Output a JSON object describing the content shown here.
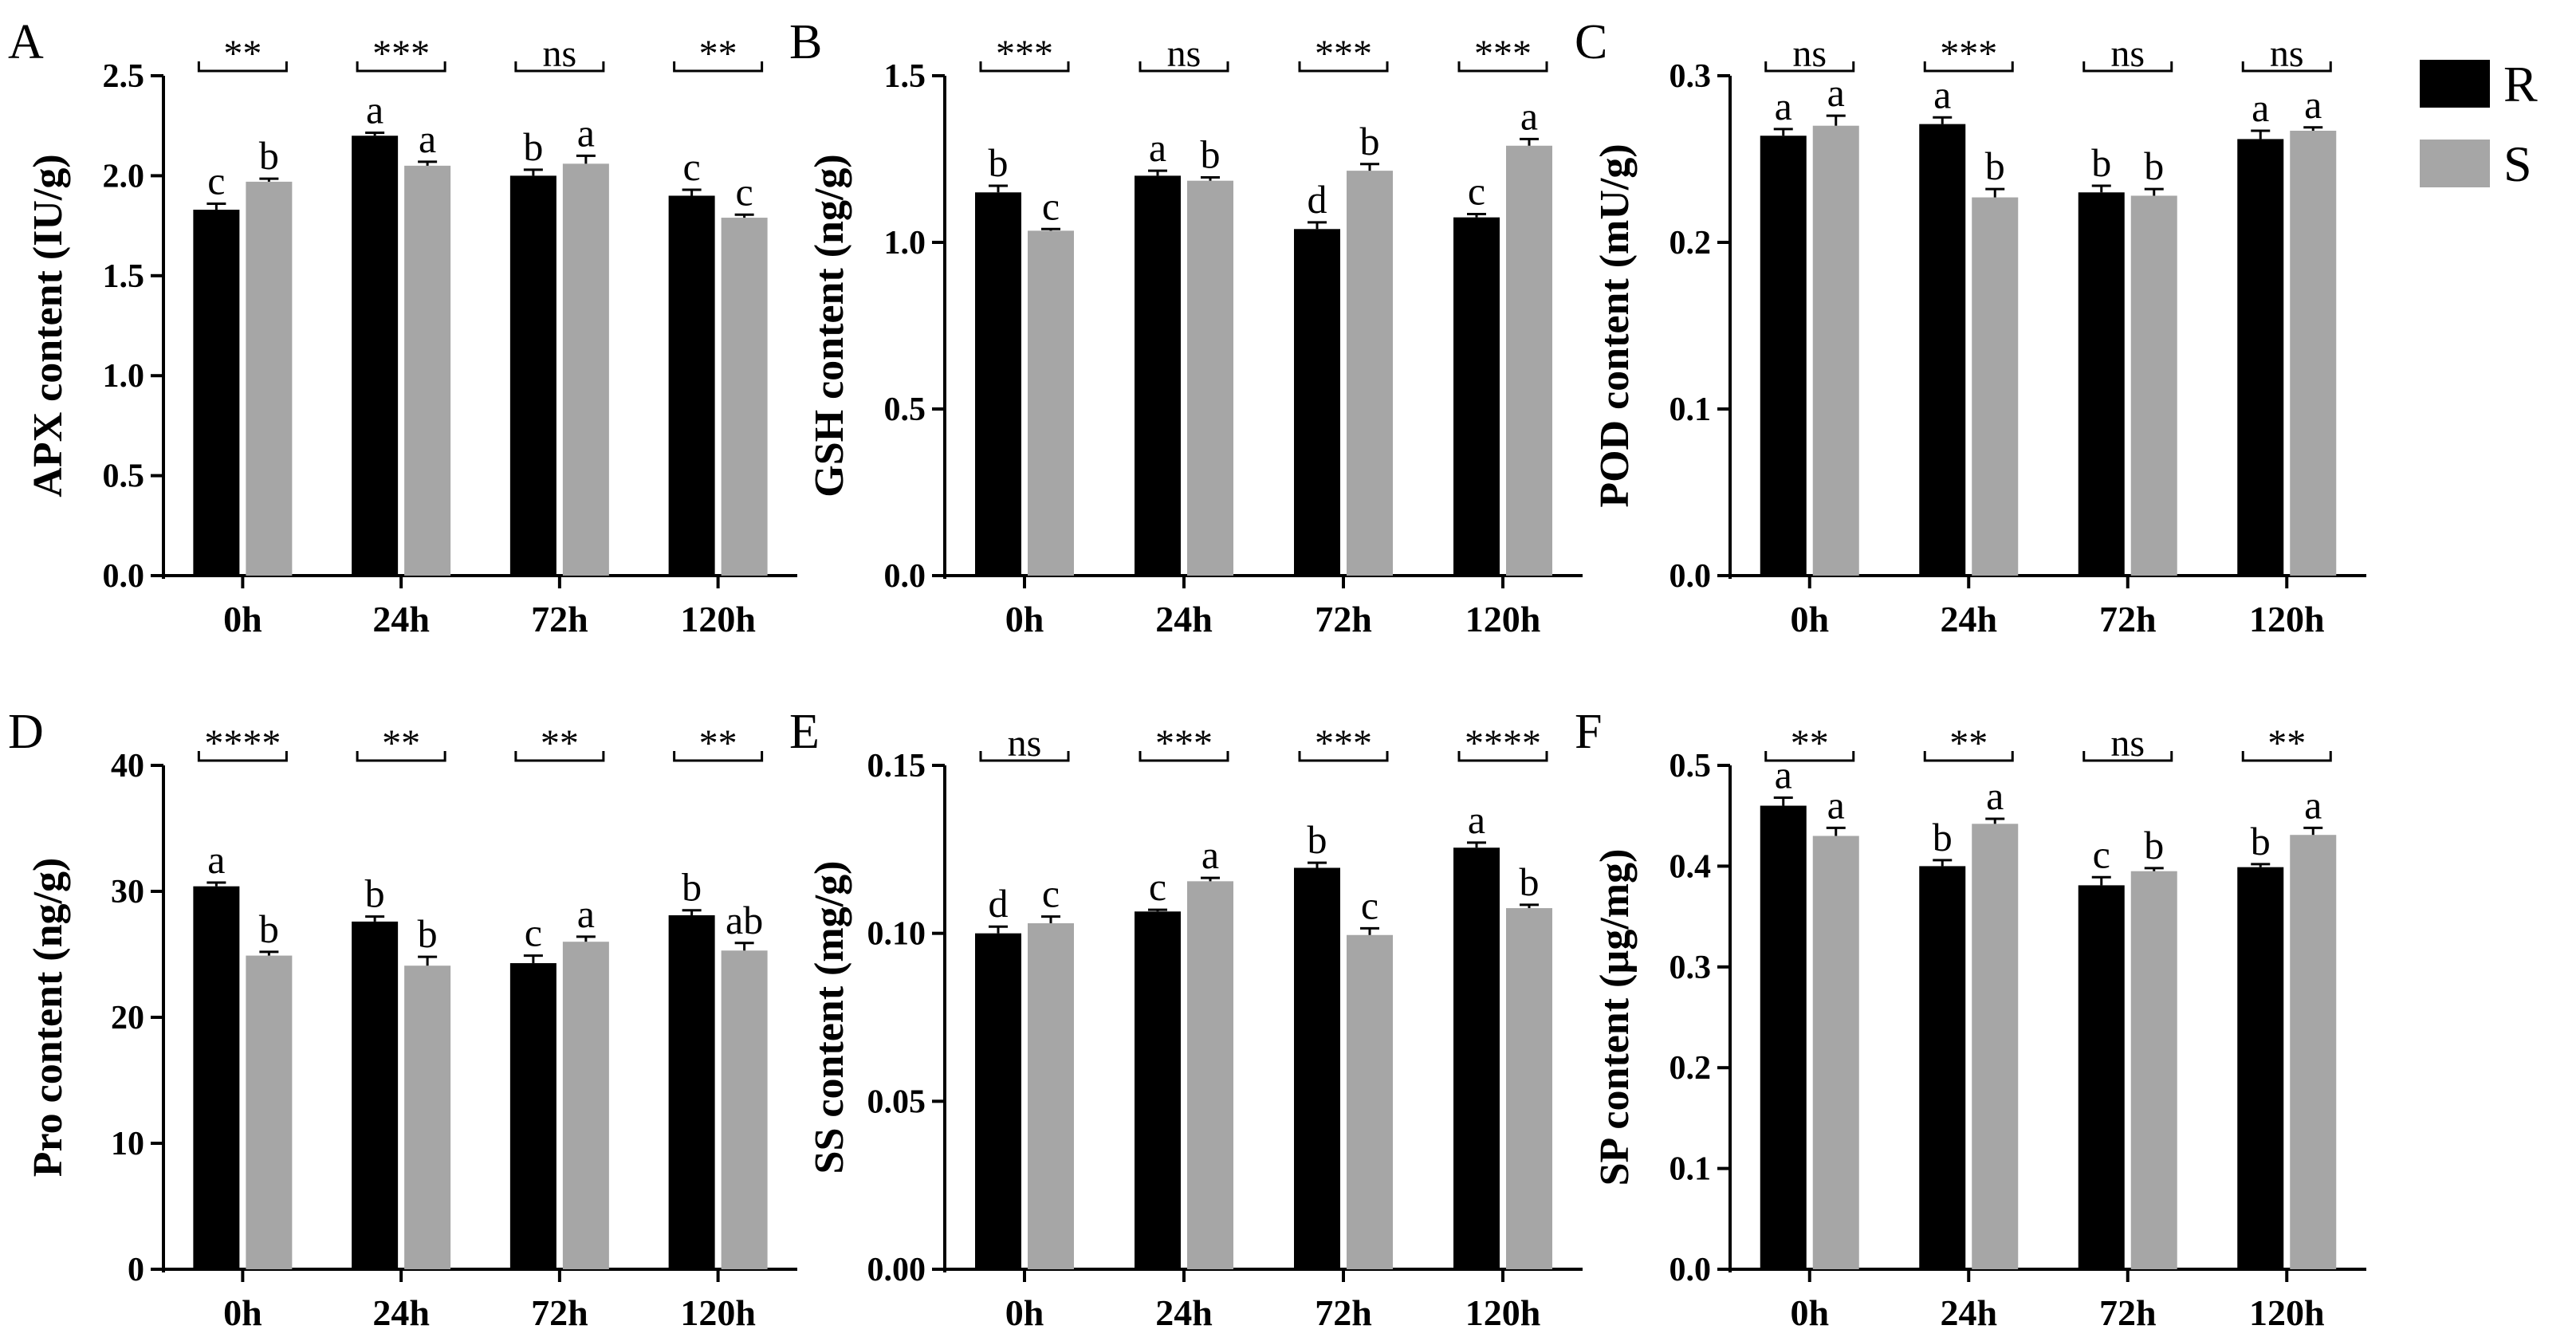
{
  "legend": {
    "items": [
      {
        "label": "R",
        "color": "#000000"
      },
      {
        "label": "S",
        "color": "#a6a6a6"
      }
    ]
  },
  "chart_data": [
    {
      "panel": "A",
      "type": "bar",
      "ylabel": "APX content (IU/g)",
      "ylim": [
        0,
        2.5
      ],
      "yticks": [
        "0.0",
        "0.5",
        "1.0",
        "1.5",
        "2.0",
        "2.5"
      ],
      "categories": [
        "0h",
        "24h",
        "72h",
        "120h"
      ],
      "series": [
        {
          "name": "R",
          "values": [
            1.83,
            2.2,
            2.0,
            1.9
          ],
          "errors": [
            0.03,
            0.015,
            0.03,
            0.03
          ],
          "letters": [
            "c",
            "a",
            "b",
            "c"
          ]
        },
        {
          "name": "S",
          "values": [
            1.97,
            2.05,
            2.06,
            1.79
          ],
          "errors": [
            0.015,
            0.02,
            0.04,
            0.015
          ],
          "letters": [
            "b",
            "a",
            "a",
            "c"
          ]
        }
      ],
      "significance": [
        "**",
        "***",
        "ns",
        "**"
      ]
    },
    {
      "panel": "B",
      "type": "bar",
      "ylabel": "GSH content (ng/g)",
      "ylim": [
        0,
        1.5
      ],
      "yticks": [
        "0.0",
        "0.5",
        "1.0",
        "1.5"
      ],
      "categories": [
        "0h",
        "24h",
        "72h",
        "120h"
      ],
      "series": [
        {
          "name": "R",
          "values": [
            1.15,
            1.2,
            1.04,
            1.075
          ],
          "errors": [
            0.02,
            0.015,
            0.02,
            0.01
          ],
          "letters": [
            "b",
            "a",
            "d",
            "c"
          ]
        },
        {
          "name": "S",
          "values": [
            1.035,
            1.185,
            1.215,
            1.29
          ],
          "errors": [
            0.005,
            0.01,
            0.02,
            0.02
          ],
          "letters": [
            "c",
            "b",
            "b",
            "a"
          ]
        }
      ],
      "significance": [
        "***",
        "ns",
        "***",
        "***"
      ]
    },
    {
      "panel": "C",
      "type": "bar",
      "ylabel": "POD content (mU/g)",
      "ylim": [
        0,
        0.3
      ],
      "yticks": [
        "0.0",
        "0.1",
        "0.2",
        "0.3"
      ],
      "categories": [
        "0h",
        "24h",
        "72h",
        "120h"
      ],
      "series": [
        {
          "name": "R",
          "values": [
            0.264,
            0.271,
            0.23,
            0.262
          ],
          "errors": [
            0.004,
            0.004,
            0.004,
            0.005
          ],
          "letters": [
            "a",
            "a",
            "b",
            "a"
          ]
        },
        {
          "name": "S",
          "values": [
            0.27,
            0.227,
            0.228,
            0.267
          ],
          "errors": [
            0.006,
            0.005,
            0.004,
            0.002
          ],
          "letters": [
            "a",
            "b",
            "b",
            "a"
          ]
        }
      ],
      "significance": [
        "ns",
        "***",
        "ns",
        "ns"
      ]
    },
    {
      "panel": "D",
      "type": "bar",
      "ylabel": "Pro content (ng/g)",
      "ylim": [
        0,
        40
      ],
      "yticks": [
        "0",
        "10",
        "20",
        "30",
        "40"
      ],
      "categories": [
        "0h",
        "24h",
        "72h",
        "120h"
      ],
      "series": [
        {
          "name": "R",
          "values": [
            30.4,
            27.6,
            24.3,
            28.1
          ],
          "errors": [
            0.3,
            0.4,
            0.6,
            0.4
          ],
          "letters": [
            "a",
            "b",
            "c",
            "b"
          ]
        },
        {
          "name": "S",
          "values": [
            24.9,
            24.1,
            26.0,
            25.3
          ],
          "errors": [
            0.3,
            0.7,
            0.4,
            0.6
          ],
          "letters": [
            "b",
            "b",
            "a",
            "ab"
          ]
        }
      ],
      "significance": [
        "****",
        "**",
        "**",
        "**"
      ]
    },
    {
      "panel": "E",
      "type": "bar",
      "ylabel": "SS content (mg/g)",
      "ylim": [
        0,
        0.15
      ],
      "yticks": [
        "0.00",
        "0.05",
        "0.10",
        "0.15"
      ],
      "categories": [
        "0h",
        "24h",
        "72h",
        "120h"
      ],
      "series": [
        {
          "name": "R",
          "values": [
            0.1,
            0.1065,
            0.1195,
            0.1255
          ],
          "errors": [
            0.002,
            0.0005,
            0.0015,
            0.0015
          ],
          "letters": [
            "d",
            "c",
            "b",
            "a"
          ]
        },
        {
          "name": "S",
          "values": [
            0.103,
            0.1155,
            0.0995,
            0.1075
          ],
          "errors": [
            0.002,
            0.001,
            0.002,
            0.001
          ],
          "letters": [
            "c",
            "a",
            "c",
            "b"
          ]
        }
      ],
      "significance": [
        "ns",
        "***",
        "***",
        "****"
      ]
    },
    {
      "panel": "F",
      "type": "bar",
      "ylabel": "SP content (µg/mg)",
      "ylim": [
        0,
        0.5
      ],
      "yticks": [
        "0.0",
        "0.1",
        "0.2",
        "0.3",
        "0.4",
        "0.5"
      ],
      "categories": [
        "0h",
        "24h",
        "72h",
        "120h"
      ],
      "series": [
        {
          "name": "R",
          "values": [
            0.46,
            0.4,
            0.381,
            0.399
          ],
          "errors": [
            0.008,
            0.006,
            0.008,
            0.003
          ],
          "letters": [
            "a",
            "b",
            "c",
            "b"
          ]
        },
        {
          "name": "S",
          "values": [
            0.43,
            0.442,
            0.395,
            0.431
          ],
          "errors": [
            0.008,
            0.005,
            0.003,
            0.007
          ],
          "letters": [
            "a",
            "a",
            "b",
            "a"
          ]
        }
      ],
      "significance": [
        "**",
        "**",
        "ns",
        "**"
      ]
    }
  ]
}
